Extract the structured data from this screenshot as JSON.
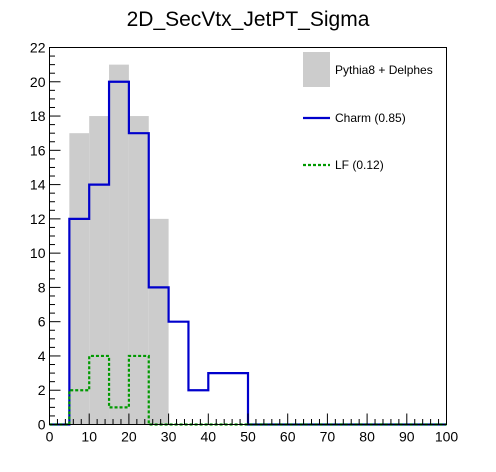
{
  "chart_data": {
    "type": "bar",
    "title": "2D_SecVtx_JetPT_Sigma",
    "xlabel": "",
    "ylabel": "",
    "xlim": [
      0,
      100
    ],
    "ylim": [
      0,
      22
    ],
    "bin_edges": [
      0,
      5,
      10,
      15,
      20,
      25,
      30,
      35,
      40,
      45,
      50,
      55,
      60,
      65,
      70,
      75,
      80,
      85,
      90,
      95,
      100
    ],
    "x_ticks": [
      0,
      10,
      20,
      30,
      40,
      50,
      60,
      70,
      80,
      90,
      100
    ],
    "y_ticks": [
      0,
      2,
      4,
      6,
      8,
      10,
      12,
      14,
      16,
      18,
      20,
      22
    ],
    "grid": false,
    "legend_position": "top-right",
    "series": [
      {
        "name": "Pythia8 + Delphes",
        "style": "filled",
        "color": "#cccccc",
        "values": [
          0,
          17,
          18,
          21,
          18,
          12,
          0,
          0,
          0,
          0,
          0,
          0,
          0,
          0,
          0,
          0,
          0,
          0,
          0,
          0
        ]
      },
      {
        "name": "Charm (0.85)",
        "style": "solid-step",
        "color": "#0000cc",
        "values": [
          0,
          12,
          14,
          20,
          17,
          8,
          6,
          2,
          3,
          3,
          0,
          0,
          0,
          0,
          0,
          0,
          0,
          0,
          0,
          0
        ]
      },
      {
        "name": "LF (0.12)",
        "style": "dashed-step",
        "color": "#009900",
        "values": [
          0,
          2,
          4,
          1,
          4,
          0,
          0,
          0,
          0,
          0,
          0,
          0,
          0,
          0,
          0,
          0,
          0,
          0,
          0,
          0
        ]
      }
    ]
  }
}
